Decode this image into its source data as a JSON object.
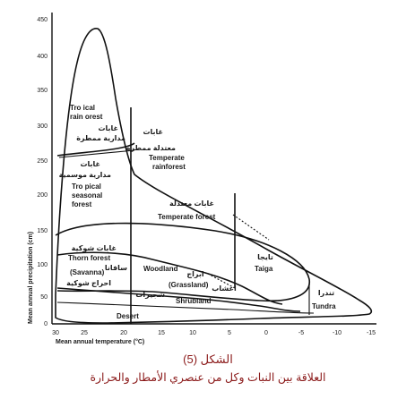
{
  "diagram": {
    "y_axis": {
      "title": "Mean annual precipitation (cm)",
      "ticks": [
        "450",
        "400",
        "350",
        "300",
        "250",
        "200",
        "150",
        "100",
        "50",
        "0"
      ]
    },
    "x_axis": {
      "title": "Mean annual temperature (°C)",
      "ticks": [
        "30",
        "25",
        "20",
        "15",
        "10",
        "5",
        "0",
        "-5",
        "-10",
        "-15"
      ]
    },
    "biomes": {
      "tropical_rain_forest": {
        "en_1": "Tro ical",
        "en_2": "rain orest",
        "ar_1": "غابات",
        "ar_2": "مدارية ممطرة"
      },
      "temperate_rainforest": {
        "ar": "معتدلة ممطرة",
        "ar_top": "غابات",
        "en_1": "Temperate",
        "en_2": "rainforest"
      },
      "tropical_seasonal_forest": {
        "ar_1": "غابات",
        "ar_2": "مدارية موسمية",
        "en_1": "Tro pical",
        "en_2": "seasonal",
        "en_3": "forest"
      },
      "temperate_forest": {
        "ar": "غابات معتدلة",
        "en": "Temperate forest"
      },
      "thorn_forest": {
        "ar": "غابات شوكية",
        "en": "Thorn forest"
      },
      "savanna": {
        "ar_1": "سافانا",
        "en": "(Savanna)",
        "ar_2": "احراج شوكية"
      },
      "woodland": {
        "en": "Woodland"
      },
      "grassland": {
        "ar": "ابراج",
        "en": "(Grassland)"
      },
      "taiga": {
        "ar": "تايجا",
        "en": "Taiga"
      },
      "shrubland": {
        "ar_1": "اعشاب",
        "en": "Shrubland",
        "ar_2": "شجيرات"
      },
      "tundra": {
        "ar": "تندرا",
        "en": "Tundra"
      },
      "desert": {
        "en": "Desert"
      }
    }
  },
  "caption": {
    "figure_number": "الشكل (5)",
    "text": "العلاقة بين النبات وكل من عنصري الأمطار والحرارة"
  }
}
